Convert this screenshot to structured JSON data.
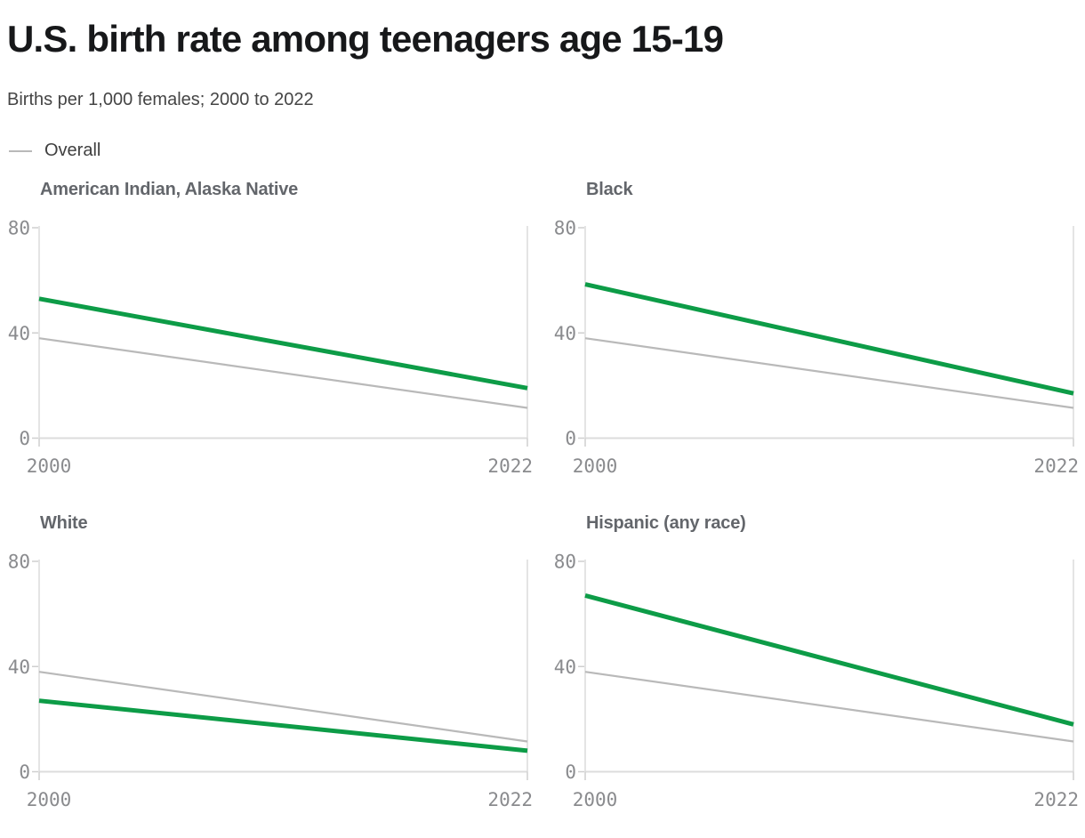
{
  "header": {
    "title": "U.S. birth rate among teenagers age 15-19",
    "subtitle": "Births per 1,000 females; 2000 to 2022",
    "legend": {
      "overall_label": "Overall"
    }
  },
  "chart_data": {
    "type": "line",
    "layout": "small-multiples-2x2",
    "title": "U.S. birth rate among teenagers age 15-19",
    "subtitle": "Births per 1,000 females; 2000 to 2022",
    "x": [
      2000,
      2022
    ],
    "x_tick_labels": [
      "2000",
      "2022"
    ],
    "y_ticks": [
      0,
      40,
      80
    ],
    "y_tick_labels": [
      "0",
      "40",
      "80"
    ],
    "ylim": [
      0,
      80
    ],
    "grid": "baseline-and-side-axes-only",
    "legend_position": "top-left",
    "series_color": "#0d9c47",
    "overall_color": "#b9b9b9",
    "axis_color": "#dcdcdc",
    "overall_series": {
      "name": "Overall",
      "color": "#b9b9b9",
      "x": [
        2000,
        2022
      ],
      "values": [
        38,
        11.5
      ]
    },
    "panels": [
      {
        "title": "American Indian, Alaska Native",
        "color": "#0d9c47",
        "x": [
          2000,
          2022
        ],
        "values": [
          53,
          19
        ]
      },
      {
        "title": "Black",
        "color": "#0d9c47",
        "x": [
          2000,
          2022
        ],
        "values": [
          58.5,
          17
        ]
      },
      {
        "title": "White",
        "color": "#0d9c47",
        "x": [
          2000,
          2022
        ],
        "values": [
          27,
          8
        ]
      },
      {
        "title": "Hispanic (any race)",
        "color": "#0d9c47",
        "x": [
          2000,
          2022
        ],
        "values": [
          67,
          18
        ]
      }
    ]
  }
}
